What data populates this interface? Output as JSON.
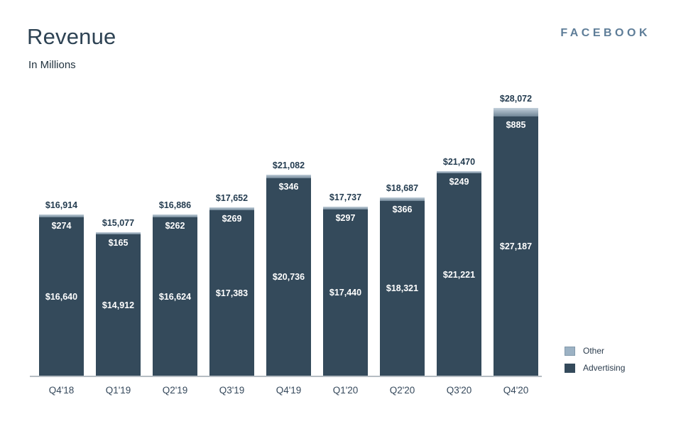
{
  "header": {
    "title": "Revenue",
    "subtitle": "In Millions",
    "logo": "FACEBOOK"
  },
  "colors": {
    "advertising": "#344a5b",
    "other": "#9cb2c4",
    "title_text": "#2e4354",
    "logo_text": "#5e7d98",
    "axis_line": "#b6bdc3",
    "bar_value_text": "#ffffff",
    "total_text": "#243c50"
  },
  "chart_data": {
    "type": "bar",
    "stacked": true,
    "title": "Revenue",
    "subtitle": "In Millions",
    "xlabel": "",
    "ylabel": "",
    "value_prefix": "$",
    "grid": false,
    "legend_position": "right-bottom",
    "ylim": [
      0,
      30000
    ],
    "categories": [
      "Q4'18",
      "Q1'19",
      "Q2'19",
      "Q3'19",
      "Q4'19",
      "Q1'20",
      "Q2'20",
      "Q3'20",
      "Q4'20"
    ],
    "series": [
      {
        "name": "Advertising",
        "color": "#344a5b",
        "values": [
          16640,
          14912,
          16624,
          17383,
          20736,
          17440,
          18321,
          21221,
          27187
        ]
      },
      {
        "name": "Other",
        "color": "#9cb2c4",
        "values": [
          274,
          165,
          262,
          269,
          346,
          297,
          366,
          249,
          885
        ]
      }
    ],
    "totals": [
      16914,
      15077,
      16886,
      17652,
      21082,
      17737,
      18687,
      21470,
      28072
    ],
    "total_labels": [
      "$16,914",
      "$15,077",
      "$16,886",
      "$17,652",
      "$21,082",
      "$17,737",
      "$18,687",
      "$21,470",
      "$28,072"
    ],
    "advertising_labels": [
      "$16,640",
      "$14,912",
      "$16,624",
      "$17,383",
      "$20,736",
      "$17,440",
      "$18,321",
      "$21,221",
      "$27,187"
    ],
    "other_labels": [
      "$274",
      "$165",
      "$262",
      "$269",
      "$346",
      "$297",
      "$366",
      "$249",
      "$885"
    ]
  }
}
